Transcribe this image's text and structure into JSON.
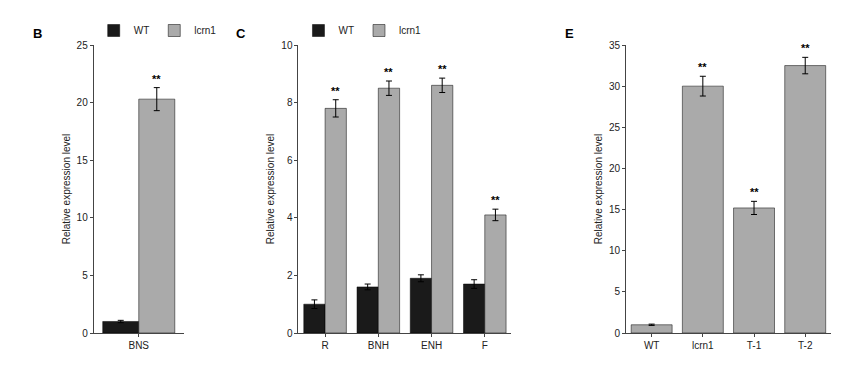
{
  "chart_data": [
    {
      "type": "bar",
      "title": "B",
      "categories": [
        "BNS"
      ],
      "series": [
        {
          "name": "WT",
          "color": "#1a1a1a",
          "values": [
            1.0
          ],
          "errors": [
            0.1
          ]
        },
        {
          "name": "lcrn1",
          "color": "#aaaaaa",
          "values": [
            20.3
          ],
          "errors": [
            1.0
          ],
          "significance": [
            "**"
          ]
        }
      ],
      "ylabel": "Relative expression level",
      "ylim": [
        0,
        25
      ],
      "yticks": [
        0,
        5,
        10,
        15,
        20,
        25
      ],
      "grid": false,
      "legend": "upper left"
    },
    {
      "type": "bar",
      "title": "C",
      "categories": [
        "R",
        "BNH",
        "ENH",
        "F"
      ],
      "series": [
        {
          "name": "WT",
          "color": "#1a1a1a",
          "values": [
            1.0,
            1.6,
            1.9,
            1.7
          ],
          "errors": [
            0.15,
            0.1,
            0.12,
            0.15
          ]
        },
        {
          "name": "lcrn1",
          "color": "#aaaaaa",
          "values": [
            7.8,
            8.5,
            8.6,
            4.1
          ],
          "errors": [
            0.3,
            0.25,
            0.25,
            0.2
          ],
          "significance": [
            "**",
            "**",
            "**",
            "**"
          ]
        }
      ],
      "ylabel": "Relative expression level",
      "ylim": [
        0,
        10
      ],
      "yticks": [
        0,
        2,
        4,
        6,
        8,
        10
      ],
      "grid": false,
      "legend": "upper left"
    },
    {
      "type": "bar",
      "title": "E",
      "categories": [
        "WT",
        "lcrn1",
        "T-1",
        "T-2"
      ],
      "values": [
        1.0,
        30.0,
        15.2,
        32.5
      ],
      "errors": [
        0.08,
        1.2,
        0.8,
        1.0
      ],
      "significance": [
        null,
        "**",
        "**",
        "**"
      ],
      "color": "#aaaaaa",
      "ylabel": "Relative expression level",
      "ylim": [
        0,
        35
      ],
      "yticks": [
        0,
        5,
        10,
        15,
        20,
        25,
        30,
        35
      ],
      "grid": false
    }
  ]
}
